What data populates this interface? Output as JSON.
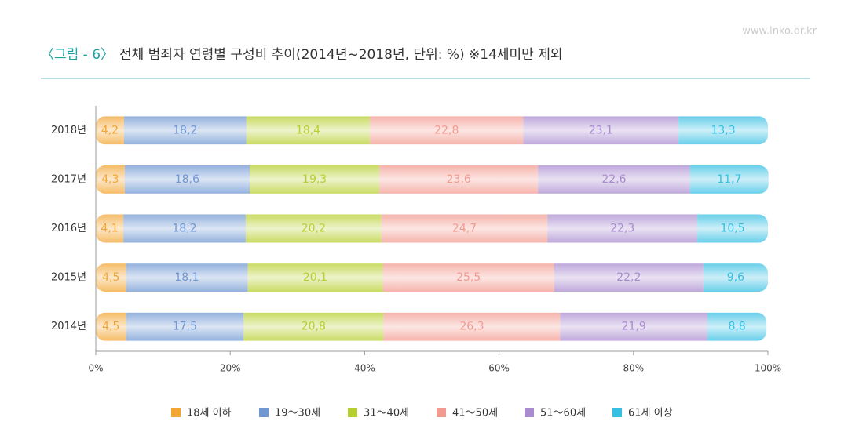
{
  "chart_data": {
    "type": "stacked_barh",
    "figure_label": "〈그림 - 6〉",
    "title": "전체 범죄자 연령별 구성비 추이(2014년~2018년, 단위: %) ※14세미만 제외",
    "watermark": "www.lnko.or.kr",
    "categories": [
      "2018년",
      "2017년",
      "2016년",
      "2015년",
      "2014년"
    ],
    "series": [
      {
        "name": "18세 이하",
        "color": "#f2a531",
        "values": [
          4.2,
          4.3,
          4.1,
          4.5,
          4.5
        ],
        "value_labels": [
          "4,2",
          "4,3",
          "4,1",
          "4,5",
          "4,5"
        ]
      },
      {
        "name": "19～30세",
        "color": "#6f97d2",
        "values": [
          18.2,
          18.6,
          18.2,
          18.1,
          17.5
        ],
        "value_labels": [
          "18,2",
          "18,6",
          "18,2",
          "18,1",
          "17,5"
        ]
      },
      {
        "name": "31～40세",
        "color": "#b7cf2e",
        "values": [
          18.4,
          19.3,
          20.2,
          20.1,
          20.8
        ],
        "value_labels": [
          "18,4",
          "19,3",
          "20,2",
          "20,1",
          "20,8"
        ]
      },
      {
        "name": "41～50세",
        "color": "#f29a8f",
        "values": [
          22.8,
          23.6,
          24.7,
          25.5,
          26.3
        ],
        "value_labels": [
          "22,8",
          "23,6",
          "24,7",
          "25,5",
          "26,3"
        ]
      },
      {
        "name": "51～60세",
        "color": "#a98bcf",
        "values": [
          23.1,
          22.6,
          22.3,
          22.2,
          21.9
        ],
        "value_labels": [
          "23,1",
          "22,6",
          "22,3",
          "22,2",
          "21,9"
        ]
      },
      {
        "name": "61세 이상",
        "color": "#35bfe3",
        "values": [
          13.3,
          11.7,
          10.5,
          9.6,
          8.8
        ],
        "value_labels": [
          "13,3",
          "11,7",
          "10,5",
          "9,6",
          "8,8"
        ]
      }
    ],
    "xlim": [
      0,
      100
    ],
    "xticks": [
      {
        "value": 0,
        "label": "0%"
      },
      {
        "value": 20,
        "label": "20%"
      },
      {
        "value": 40,
        "label": "40%"
      },
      {
        "value": 60,
        "label": "60%"
      },
      {
        "value": 80,
        "label": "80%"
      },
      {
        "value": 100,
        "label": "100%"
      }
    ]
  }
}
